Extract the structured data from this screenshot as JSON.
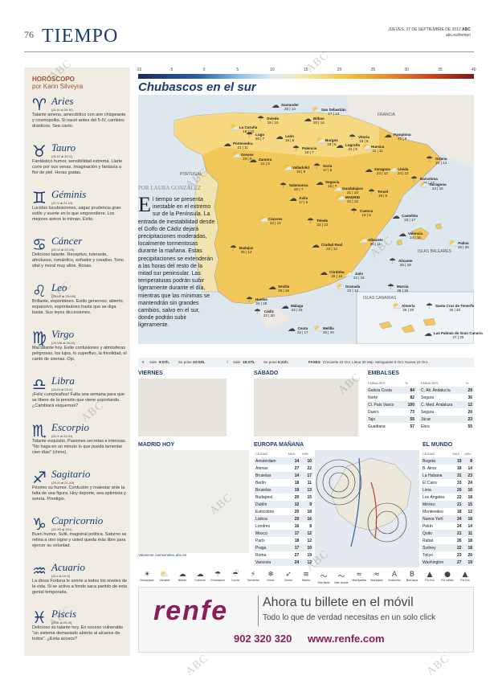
{
  "page": {
    "number": "76",
    "section": "TIEMPO",
    "date": "JUEVES, 27 DE SEPTIEMBRE DE 2012",
    "paper": "ABC",
    "url": "abc.es/tiempo"
  },
  "horoscope": {
    "heading": "HORÓSCOPO",
    "author": "por Karin Silveyra",
    "signs": [
      {
        "name": "Aries",
        "dates": "(21-III al 20-IV)",
        "text": "Talante ameno, amecdótico con aire chispeante y cosmopolita. Si nació antes del 5-IV, cambios drásticos. Sea cauto."
      },
      {
        "name": "Tauro",
        "dates": "(21-IV al 20-V)",
        "text": "Fantástico humor, sensibilidad extrema. Llarte corre por sus venas. Imaginación y fantasía a flor de piel. Horas gratas."
      },
      {
        "name": "Géminis",
        "dates": "(21-V al 21-VI)",
        "text": "Lucidas lucubraciones, sagaz prudencia gran estilo y suerte en lo que emprendiere. Los mejores astros le miman. Éxito."
      },
      {
        "name": "Cáncer",
        "dates": "(22-VI al 22-VII)",
        "text": "Delicioso talante. Receptivo, tolerante, afectuoso, romántico, soñador y creativo. Tono vital y moral muy altos. Rosas."
      },
      {
        "name": "Leo",
        "dates": "(23-VII al 23-VIII)",
        "text": "Brillante, espontáneo. Estilo generoso, abierto, expansivo, esponteáneo hasta que se diga basta. Sus leyes dicciosiones."
      },
      {
        "name": "Virgo",
        "dates": "(24-VIII al 23-IX)",
        "text": "Mal talante hoy. Evite confusiones y atmósferas peligrosas, los lujos, lo superfluo, la frivolidad, el canto de sirenas. Ojo."
      },
      {
        "name": "Libra",
        "dates": "(24-IX al 23-X)",
        "text": "¡Feliz cumpleaños! Falta una semana para que se libere de la presión que viene soportando. ¿Cambiará esquemas?"
      },
      {
        "name": "Escorpio",
        "dates": "(24-X al 22-XI)",
        "text": "Talante exquisito. Pasiones secretas e intensas. \"No haga en un minuto lo que pueda lamentar cien días\" (chino)."
      },
      {
        "name": "Sagitario",
        "dates": "(23-XI al 21-XII)",
        "text": "Pésimo su humor. Confusión y malestar ante la falta de una figura. Hoy deporte, sea optimista y sonría. Prestigio."
      },
      {
        "name": "Capricornio",
        "dates": "(22-XII al 20-I)",
        "text": "Buen humor. Sutil, magistral política. Saturno se retina a otro signo y usted queda más libre para ejercer su voluntad."
      },
      {
        "name": "Acuario",
        "dates": "(21-I al 19-II)",
        "text": "La diosa Fortuna le sonrie a todos los niveles de la vida. Si se activa a fondo saca partido de esta genial temporada."
      },
      {
        "name": "Piscis",
        "dates": "(20-II al 20-III)",
        "text": "Delicioso su talante hoy. En exceso vulnerable \"un sistema demasiado abierto al alcance de todos\". ¿Evita acosos?"
      }
    ]
  },
  "scale": {
    "labels": [
      "-10",
      "-5",
      "0",
      "5",
      "10",
      "15",
      "20",
      "25",
      "30",
      "35",
      "40"
    ]
  },
  "main": {
    "title": "Chubascos en el sur",
    "byline": "POR LAURA GONZÁLEZ",
    "lead_cap": "E",
    "lead": "l tiempo se presenta inestable en el extremo sur de la Península. La entrada de inestabilidad desde el Golfo de Cádiz dejará precipitaciones moderadas, localmente tormentosas durante la mañana. Estas precipitaciones se extenderán a las horas del resto de la mitad sur peninsular. Las temperaturas podrán subir ligeramente durante el día, mientras que las mínimas se mantendrán sin grandes cambios, salvo en el sur, donde podrán subir ligeramente."
  },
  "map": {
    "regions": [
      "FRANCIA",
      "PORTUGAL",
      "ISLAS BALEARES",
      "ISLAS CANARIAS"
    ],
    "cities": [
      {
        "name": "Santander",
        "temps": "20 | 14"
      },
      {
        "name": "San Sebastián",
        "temps": "17 | 13"
      },
      {
        "name": "Oviedo",
        "temps": "19 | 10"
      },
      {
        "name": "Bilbao",
        "temps": "20 | 14"
      },
      {
        "name": "La Coruña",
        "temps": "18 | 13"
      },
      {
        "name": "Lugo",
        "temps": "20 | 7"
      },
      {
        "name": "León",
        "temps": "19 | 6"
      },
      {
        "name": "Burgos",
        "temps": "18 | 6"
      },
      {
        "name": "Vitoria",
        "temps": "18 | 8"
      },
      {
        "name": "Pamplona",
        "temps": "21 | 9"
      },
      {
        "name": "Huesca",
        "temps": "22 | 11"
      },
      {
        "name": "Girona",
        "temps": "24 | 14"
      },
      {
        "name": "Pontevedra",
        "temps": "21 | 11"
      },
      {
        "name": "Orense",
        "temps": "23 | 9"
      },
      {
        "name": "Palencia",
        "temps": "19 | 7"
      },
      {
        "name": "Logroño",
        "temps": "21 | 9"
      },
      {
        "name": "Lleida",
        "temps": "24 | 12"
      },
      {
        "name": "Barcelona",
        "temps": "25 | 17"
      },
      {
        "name": "Zamora",
        "temps": "21 | 8"
      },
      {
        "name": "Valladolid",
        "temps": "19 | 8"
      },
      {
        "name": "Soria",
        "temps": "17 | 6"
      },
      {
        "name": "Zaragoza",
        "temps": "23 | 12"
      },
      {
        "name": "Tarragona",
        "temps": "24 | 16"
      },
      {
        "name": "Salamanca",
        "temps": "20 | 7"
      },
      {
        "name": "Segovia",
        "temps": "18 | 8"
      },
      {
        "name": "Guadalajara",
        "temps": "21 | 10"
      },
      {
        "name": "Teruel",
        "temps": "19 | 6"
      },
      {
        "name": "Ávila",
        "temps": "17 | 6"
      },
      {
        "name": "MADRID",
        "temps": "21 | 12"
      },
      {
        "name": "Cuenca",
        "temps": "19 | 9"
      },
      {
        "name": "Castellón",
        "temps": "23 | 17"
      },
      {
        "name": "Cáceres",
        "temps": "23 | 13"
      },
      {
        "name": "Toledo",
        "temps": "23 | 13"
      },
      {
        "name": "Valencia",
        "temps": "24 | 16"
      },
      {
        "name": "Palma",
        "temps": "25 | 20"
      },
      {
        "name": "Badajoz",
        "temps": "25 | 14"
      },
      {
        "name": "Ciudad Real",
        "temps": "22 | 12"
      },
      {
        "name": "Albacete",
        "temps": "20 | 11"
      },
      {
        "name": "Alicante",
        "temps": "25 | 19"
      },
      {
        "name": "Córdoba",
        "temps": "26 | 15"
      },
      {
        "name": "Jaén",
        "temps": "22 | 15"
      },
      {
        "name": "Murcia",
        "temps": "26 | 16"
      },
      {
        "name": "Sevilla",
        "temps": "25 | 16"
      },
      {
        "name": "Granada",
        "temps": "22 | 12"
      },
      {
        "name": "Huelva",
        "temps": "24 | 18"
      },
      {
        "name": "Málaga",
        "temps": "24 | 18"
      },
      {
        "name": "Almería",
        "temps": "26 | 20"
      },
      {
        "name": "Cádiz",
        "temps": "22 | 20"
      },
      {
        "name": "Ceuta",
        "temps": "22 | 17"
      },
      {
        "name": "Melilla",
        "temps": "25 | 20"
      },
      {
        "name": "Santa Cruz de Tenerife",
        "temps": "26 | 20"
      },
      {
        "name": "Las Palmas de Gran Canaria",
        "temps": "27 | 20"
      }
    ]
  },
  "sun": {
    "sunrise_label": "Sale",
    "sunrise": "8:07h.",
    "sunset_label": "Se pone",
    "sunset": "20:03h.",
    "moonrise_label": "Sale",
    "moonrise": "18:27h.",
    "moonset_label": "Se pone",
    "moonset": "5:21h.",
    "phases_label": "FASES",
    "phases": "Creciente 22 Oct.  Llena 30 Sep.  Menguante 8 Oct.  Nueva 15 Oct."
  },
  "forecast": {
    "friday": "VIERNES",
    "saturday": "SÁBADO",
    "madrid": "MADRID HOY",
    "europe": "EUROPA MAÑANA",
    "world": "EL MUNDO",
    "reservoirs": "EMBALSES",
    "madrid_url": "Valonecer camismeteo.abc.es"
  },
  "embalses_left": {
    "headers": [
      "EMBALSES",
      "%"
    ],
    "rows": [
      [
        "Galicia Costa",
        "84"
      ],
      [
        "Norte",
        "82"
      ],
      [
        "Cl. País Vasco",
        "100"
      ],
      [
        "Duero",
        "73"
      ],
      [
        "Tajo",
        "55"
      ],
      [
        "Guadiana",
        "57"
      ]
    ]
  },
  "embalses_right": {
    "headers": [
      "EMBALSES",
      "%"
    ],
    "rows": [
      [
        "C. Alt. Andalucía",
        "29"
      ],
      [
        "Segura",
        "36"
      ],
      [
        "C. Med. Andaluza",
        "12"
      ],
      [
        "Segura",
        "20"
      ],
      [
        "Júcar",
        "23"
      ],
      [
        "Ebro",
        "55"
      ]
    ]
  },
  "europe": {
    "headers": [
      "CIUDAD",
      "MAX",
      "MIN"
    ],
    "rows": [
      [
        "Amsterdam",
        "14",
        "10"
      ],
      [
        "Atenas",
        "27",
        "22"
      ],
      [
        "Bruselas",
        "14",
        "17"
      ],
      [
        "Berlín",
        "18",
        "11"
      ],
      [
        "Bruselas",
        "19",
        "13"
      ],
      [
        "Budapest",
        "20",
        "15"
      ],
      [
        "Dublín",
        "12",
        "9"
      ],
      [
        "Estocolmo",
        "20",
        "18"
      ],
      [
        "Lisboa",
        "20",
        "16"
      ],
      [
        "Londres",
        "16",
        "8"
      ],
      [
        "Moscú",
        "17",
        "12"
      ],
      [
        "París",
        "18",
        "12"
      ],
      [
        "Praga",
        "17",
        "10"
      ],
      [
        "Roma",
        "27",
        "19"
      ],
      [
        "Varsovia",
        "24",
        "12"
      ]
    ]
  },
  "world": {
    "headers": [
      "CIUDAD",
      "MAX",
      "MIN"
    ],
    "rows": [
      [
        "Bogotá",
        "19",
        "8"
      ],
      [
        "B. Aires",
        "18",
        "14"
      ],
      [
        "La Habana",
        "31",
        "23"
      ],
      [
        "El Cairo",
        "33",
        "24"
      ],
      [
        "Lima",
        "20",
        "16"
      ],
      [
        "Los Ángeles",
        "22",
        "18"
      ],
      [
        "México",
        "21",
        "15"
      ],
      [
        "Montevideo",
        "18",
        "12"
      ],
      [
        "Nueva York",
        "24",
        "18"
      ],
      [
        "Pekín",
        "24",
        "14"
      ],
      [
        "Quito",
        "21",
        "11"
      ],
      [
        "Rabat",
        "26",
        "18"
      ],
      [
        "Sydney",
        "22",
        "18"
      ],
      [
        "Tokyo",
        "23",
        "20"
      ],
      [
        "Washington",
        "27",
        "19"
      ]
    ]
  },
  "legend": [
    "Despejado",
    "Variable",
    "Nubes",
    "Cubierto",
    "Chubascos",
    "Lluvia",
    "Tormenta",
    "Nieve",
    "Viento",
    "Niebla",
    "Mar llana",
    "Mar rizada",
    "Marejadilla",
    "Marejada",
    "Anticiclón",
    "Borrasca",
    "Fin frío",
    "Fin cálido",
    "Fin frío"
  ],
  "ad": {
    "brand": "renfe",
    "headline": "Ahora tu billete en el móvil",
    "sub": "Todo lo que de verdad necesitas en un solo click",
    "phone": "902 320 320",
    "url": "www.renfe.com"
  },
  "watermark": "ABC",
  "colors": {
    "accent": "#1c3c6e",
    "horoscope": "#a0522d",
    "renfe": "#8b1e5a"
  }
}
